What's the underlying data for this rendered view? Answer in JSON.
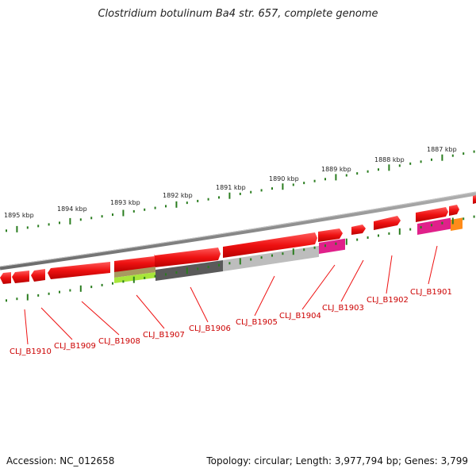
{
  "title": "Clostridium botulinum Ba4 str. 657, complete genome",
  "footer": {
    "accession": "Accession: NC_012658",
    "info": "Topology: circular; Length: 3,977,794 bp; Genes: 3,799"
  },
  "kbp_labels": [
    "1895 kbp",
    "1894 kbp",
    "1893 kbp",
    "1892 kbp",
    "1891 kbp",
    "1890 kbp",
    "1889 kbp",
    "1888 kbp",
    "1887 kbp"
  ],
  "gene_labels": [
    "CLJ_B1910",
    "CLJ_B1909",
    "CLJ_B1908",
    "CLJ_B1907",
    "CLJ_B1906",
    "CLJ_B1905",
    "CLJ_B1904",
    "CLJ_B1903",
    "CLJ_B1902",
    "CLJ_B1901"
  ],
  "colors": {
    "gene": "#ee1111",
    "label": "#cc0000",
    "backbone": "#888888",
    "tick": "#2a7d1f",
    "pink": "#e0208a",
    "orange": "#ff8c1a",
    "lime": "#a8e63a",
    "olive": "#a89a60",
    "dark_gray": "#5a5a5a",
    "light_gray": "#bdbdbd"
  }
}
